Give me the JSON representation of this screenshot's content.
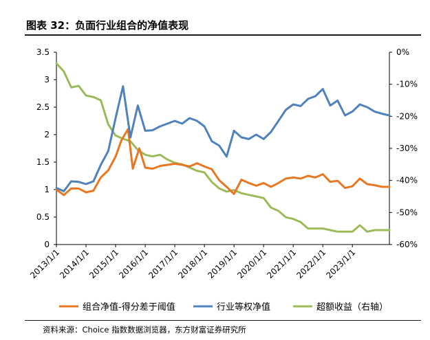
{
  "figure": {
    "title": "图表 32：负面行业组合的净值表现",
    "source": "资料来源：Choice 指数数据浏览器，东方财富证券研究所"
  },
  "colors": {
    "combo": "#E87722",
    "industry": "#4F81BD",
    "excess": "#9BBB59"
  },
  "chart_data": {
    "type": "line",
    "title": "",
    "xlabel": "",
    "ylabel": "",
    "x_tick_labels": [
      "2013/1/1",
      "2014/1/1",
      "2015/1/1",
      "2016/1/1",
      "2017/1/1",
      "2018/1/1",
      "2019/1/1",
      "2020/1/1",
      "2021/1/1",
      "2022/1/1",
      "2023/1/1"
    ],
    "x_range": [
      2013.0,
      2024.25
    ],
    "y_left_ticks": [
      "0",
      "0.5",
      "1",
      "1.5",
      "2",
      "2.5",
      "3",
      "3.5"
    ],
    "y_left_range": [
      0,
      3.5
    ],
    "y_right_ticks": [
      "-60%",
      "-50%",
      "-40%",
      "-30%",
      "-20%",
      "-10%",
      "0%"
    ],
    "y_right_range": [
      -60,
      0
    ],
    "legend_position": "bottom",
    "series": [
      {
        "name": "组合净值-得分差于阈值",
        "axis": "left",
        "color_key": "combo",
        "points": [
          [
            2013.0,
            1.0
          ],
          [
            2013.25,
            0.9
          ],
          [
            2013.5,
            1.02
          ],
          [
            2013.75,
            1.02
          ],
          [
            2014.0,
            0.95
          ],
          [
            2014.25,
            0.98
          ],
          [
            2014.5,
            1.22
          ],
          [
            2014.75,
            1.35
          ],
          [
            2015.0,
            1.6
          ],
          [
            2015.2,
            1.9
          ],
          [
            2015.42,
            2.1
          ],
          [
            2015.58,
            1.38
          ],
          [
            2015.8,
            1.75
          ],
          [
            2016.0,
            1.4
          ],
          [
            2016.25,
            1.38
          ],
          [
            2016.5,
            1.43
          ],
          [
            2016.75,
            1.45
          ],
          [
            2017.0,
            1.47
          ],
          [
            2017.25,
            1.45
          ],
          [
            2017.5,
            1.42
          ],
          [
            2017.75,
            1.48
          ],
          [
            2018.0,
            1.42
          ],
          [
            2018.25,
            1.37
          ],
          [
            2018.5,
            1.17
          ],
          [
            2018.75,
            1.05
          ],
          [
            2019.0,
            0.92
          ],
          [
            2019.25,
            1.18
          ],
          [
            2019.5,
            1.12
          ],
          [
            2019.75,
            1.07
          ],
          [
            2020.0,
            1.12
          ],
          [
            2020.25,
            1.05
          ],
          [
            2020.5,
            1.12
          ],
          [
            2020.75,
            1.2
          ],
          [
            2021.0,
            1.22
          ],
          [
            2021.25,
            1.2
          ],
          [
            2021.5,
            1.25
          ],
          [
            2021.75,
            1.22
          ],
          [
            2022.0,
            1.28
          ],
          [
            2022.25,
            1.14
          ],
          [
            2022.5,
            1.16
          ],
          [
            2022.75,
            1.03
          ],
          [
            2023.0,
            1.06
          ],
          [
            2023.25,
            1.2
          ],
          [
            2023.5,
            1.1
          ],
          [
            2023.75,
            1.08
          ],
          [
            2024.0,
            1.05
          ],
          [
            2024.25,
            1.05
          ]
        ]
      },
      {
        "name": "行业等权净值",
        "axis": "left",
        "color_key": "industry",
        "points": [
          [
            2013.0,
            1.03
          ],
          [
            2013.25,
            0.97
          ],
          [
            2013.5,
            1.15
          ],
          [
            2013.75,
            1.14
          ],
          [
            2014.0,
            1.1
          ],
          [
            2014.25,
            1.15
          ],
          [
            2014.5,
            1.45
          ],
          [
            2014.75,
            1.7
          ],
          [
            2015.0,
            2.3
          ],
          [
            2015.25,
            2.88
          ],
          [
            2015.5,
            1.95
          ],
          [
            2015.75,
            2.53
          ],
          [
            2016.0,
            2.07
          ],
          [
            2016.25,
            2.08
          ],
          [
            2016.5,
            2.15
          ],
          [
            2016.75,
            2.2
          ],
          [
            2017.0,
            2.25
          ],
          [
            2017.25,
            2.2
          ],
          [
            2017.5,
            2.3
          ],
          [
            2017.75,
            2.25
          ],
          [
            2018.0,
            2.15
          ],
          [
            2018.25,
            1.88
          ],
          [
            2018.5,
            1.8
          ],
          [
            2018.75,
            1.6
          ],
          [
            2019.0,
            2.07
          ],
          [
            2019.25,
            1.95
          ],
          [
            2019.5,
            1.92
          ],
          [
            2019.75,
            2.0
          ],
          [
            2020.0,
            1.92
          ],
          [
            2020.25,
            2.05
          ],
          [
            2020.5,
            2.25
          ],
          [
            2020.75,
            2.45
          ],
          [
            2021.0,
            2.55
          ],
          [
            2021.25,
            2.52
          ],
          [
            2021.5,
            2.65
          ],
          [
            2021.75,
            2.7
          ],
          [
            2022.0,
            2.83
          ],
          [
            2022.25,
            2.53
          ],
          [
            2022.5,
            2.62
          ],
          [
            2022.75,
            2.35
          ],
          [
            2023.0,
            2.42
          ],
          [
            2023.25,
            2.55
          ],
          [
            2023.5,
            2.5
          ],
          [
            2023.75,
            2.42
          ],
          [
            2024.0,
            2.38
          ],
          [
            2024.25,
            2.35
          ]
        ]
      },
      {
        "name": "超额收益（右轴）",
        "axis": "right",
        "color_key": "excess",
        "points": [
          [
            2013.0,
            -3.5
          ],
          [
            2013.25,
            -6.0
          ],
          [
            2013.5,
            -11.0
          ],
          [
            2013.75,
            -10.5
          ],
          [
            2014.0,
            -13.5
          ],
          [
            2014.25,
            -14.0
          ],
          [
            2014.5,
            -15.0
          ],
          [
            2014.75,
            -22.5
          ],
          [
            2015.0,
            -26.0
          ],
          [
            2015.25,
            -27.0
          ],
          [
            2015.5,
            -27.8
          ],
          [
            2015.75,
            -30.5
          ],
          [
            2016.0,
            -32.0
          ],
          [
            2016.25,
            -32.5
          ],
          [
            2016.5,
            -32.0
          ],
          [
            2016.75,
            -33.5
          ],
          [
            2017.0,
            -34.5
          ],
          [
            2017.25,
            -35.0
          ],
          [
            2017.5,
            -36.0
          ],
          [
            2017.75,
            -37.0
          ],
          [
            2018.0,
            -37.5
          ],
          [
            2018.25,
            -40.5
          ],
          [
            2018.5,
            -42.5
          ],
          [
            2018.75,
            -43.5
          ],
          [
            2019.0,
            -43.0
          ],
          [
            2019.25,
            -44.0
          ],
          [
            2019.5,
            -44.5
          ],
          [
            2019.75,
            -45.0
          ],
          [
            2020.0,
            -45.5
          ],
          [
            2020.25,
            -48.5
          ],
          [
            2020.5,
            -49.5
          ],
          [
            2020.75,
            -51.5
          ],
          [
            2021.0,
            -52.0
          ],
          [
            2021.25,
            -53.0
          ],
          [
            2021.5,
            -55.0
          ],
          [
            2021.75,
            -55.0
          ],
          [
            2022.0,
            -55.0
          ],
          [
            2022.25,
            -55.5
          ],
          [
            2022.5,
            -56.0
          ],
          [
            2022.75,
            -56.0
          ],
          [
            2023.0,
            -56.0
          ],
          [
            2023.25,
            -54.0
          ],
          [
            2023.5,
            -56.0
          ],
          [
            2023.75,
            -55.5
          ],
          [
            2024.0,
            -55.5
          ],
          [
            2024.25,
            -55.5
          ]
        ]
      }
    ]
  }
}
